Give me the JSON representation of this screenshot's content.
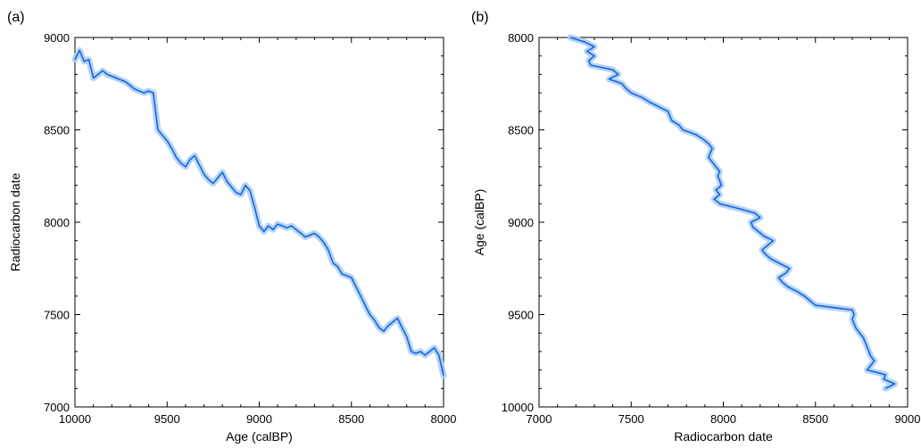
{
  "chart_data": [
    {
      "panel_label": "(a)",
      "type": "line",
      "title": "",
      "xlabel": "Age (calBP)",
      "ylabel": "Radiocarbon date",
      "xlim": [
        10000,
        8000
      ],
      "ylim": [
        7000,
        9000
      ],
      "x_reversed": true,
      "xticks": [
        10000,
        9500,
        9000,
        8500,
        8000
      ],
      "yticks": [
        7000,
        7500,
        8000,
        8500,
        9000
      ],
      "grid": false,
      "line_color": "#1565e0",
      "band_color": "#a9cdf5",
      "series": [
        {
          "x": [
            10000,
            9975,
            9950,
            9925,
            9900,
            9875,
            9850,
            9825,
            9800,
            9775,
            9750,
            9725,
            9700,
            9675,
            9650,
            9625,
            9600,
            9575,
            9550,
            9525,
            9500,
            9475,
            9450,
            9425,
            9400,
            9375,
            9350,
            9325,
            9300,
            9275,
            9250,
            9225,
            9200,
            9175,
            9150,
            9125,
            9100,
            9075,
            9050,
            9025,
            9000,
            8975,
            8950,
            8925,
            8900,
            8875,
            8850,
            8825,
            8800,
            8775,
            8750,
            8725,
            8700,
            8675,
            8650,
            8625,
            8600,
            8575,
            8550,
            8525,
            8500,
            8475,
            8450,
            8425,
            8400,
            8375,
            8350,
            8325,
            8300,
            8275,
            8250,
            8225,
            8200,
            8175,
            8150,
            8125,
            8100,
            8075,
            8050,
            8025,
            8000
          ],
          "y": [
            8880,
            8930,
            8870,
            8880,
            8780,
            8800,
            8820,
            8800,
            8790,
            8780,
            8770,
            8760,
            8740,
            8720,
            8710,
            8700,
            8710,
            8700,
            8500,
            8470,
            8440,
            8400,
            8350,
            8320,
            8300,
            8340,
            8360,
            8310,
            8260,
            8230,
            8210,
            8240,
            8270,
            8220,
            8190,
            8160,
            8150,
            8200,
            8170,
            8080,
            7980,
            7950,
            7980,
            7960,
            7990,
            7980,
            7970,
            7980,
            7960,
            7940,
            7920,
            7930,
            7940,
            7920,
            7890,
            7850,
            7780,
            7760,
            7720,
            7710,
            7700,
            7650,
            7600,
            7550,
            7500,
            7470,
            7430,
            7410,
            7440,
            7460,
            7480,
            7430,
            7380,
            7300,
            7290,
            7300,
            7280,
            7300,
            7320,
            7280,
            7170
          ]
        }
      ]
    },
    {
      "panel_label": "(b)",
      "type": "line",
      "title": "",
      "xlabel": "Radiocarbon date",
      "ylabel": "Age (calBP)",
      "xlim": [
        7000,
        9000
      ],
      "ylim": [
        10000,
        8000
      ],
      "y_reversed": true,
      "xticks": [
        7000,
        7500,
        8000,
        8500,
        9000
      ],
      "yticks": [
        8000,
        8500,
        9000,
        9500,
        10000
      ],
      "grid": false,
      "line_color": "#1565e0",
      "band_color": "#a9cdf5",
      "series": [
        {
          "x": [
            7170,
            7250,
            7300,
            7260,
            7300,
            7270,
            7280,
            7400,
            7430,
            7380,
            7450,
            7470,
            7500,
            7560,
            7600,
            7650,
            7700,
            7710,
            7720,
            7760,
            7780,
            7850,
            7890,
            7920,
            7940,
            7930,
            7920,
            7940,
            7960,
            7980,
            7970,
            7980,
            7990,
            7960,
            7980,
            7950,
            7980,
            8080,
            8170,
            8200,
            8150,
            8160,
            8190,
            8220,
            8270,
            8240,
            8210,
            8230,
            8260,
            8310,
            8360,
            8340,
            8300,
            8320,
            8350,
            8400,
            8440,
            8470,
            8500,
            8700,
            8710,
            8700,
            8710,
            8720,
            8740,
            8760,
            8770,
            8780,
            8790,
            8800,
            8820,
            8800,
            8780,
            8880,
            8870,
            8930,
            8880
          ],
          "y": [
            8000,
            8025,
            8050,
            8075,
            8100,
            8125,
            8150,
            8175,
            8200,
            8225,
            8250,
            8275,
            8300,
            8325,
            8350,
            8375,
            8400,
            8425,
            8450,
            8475,
            8500,
            8525,
            8550,
            8575,
            8600,
            8625,
            8650,
            8675,
            8700,
            8725,
            8750,
            8775,
            8800,
            8825,
            8850,
            8875,
            8900,
            8925,
            8950,
            8975,
            9000,
            9025,
            9050,
            9075,
            9100,
            9125,
            9150,
            9175,
            9200,
            9225,
            9250,
            9275,
            9300,
            9325,
            9350,
            9375,
            9400,
            9425,
            9450,
            9475,
            9500,
            9525,
            9550,
            9575,
            9600,
            9625,
            9650,
            9675,
            9700,
            9725,
            9750,
            9775,
            9800,
            9825,
            9850,
            9875,
            9900
          ]
        }
      ]
    }
  ]
}
